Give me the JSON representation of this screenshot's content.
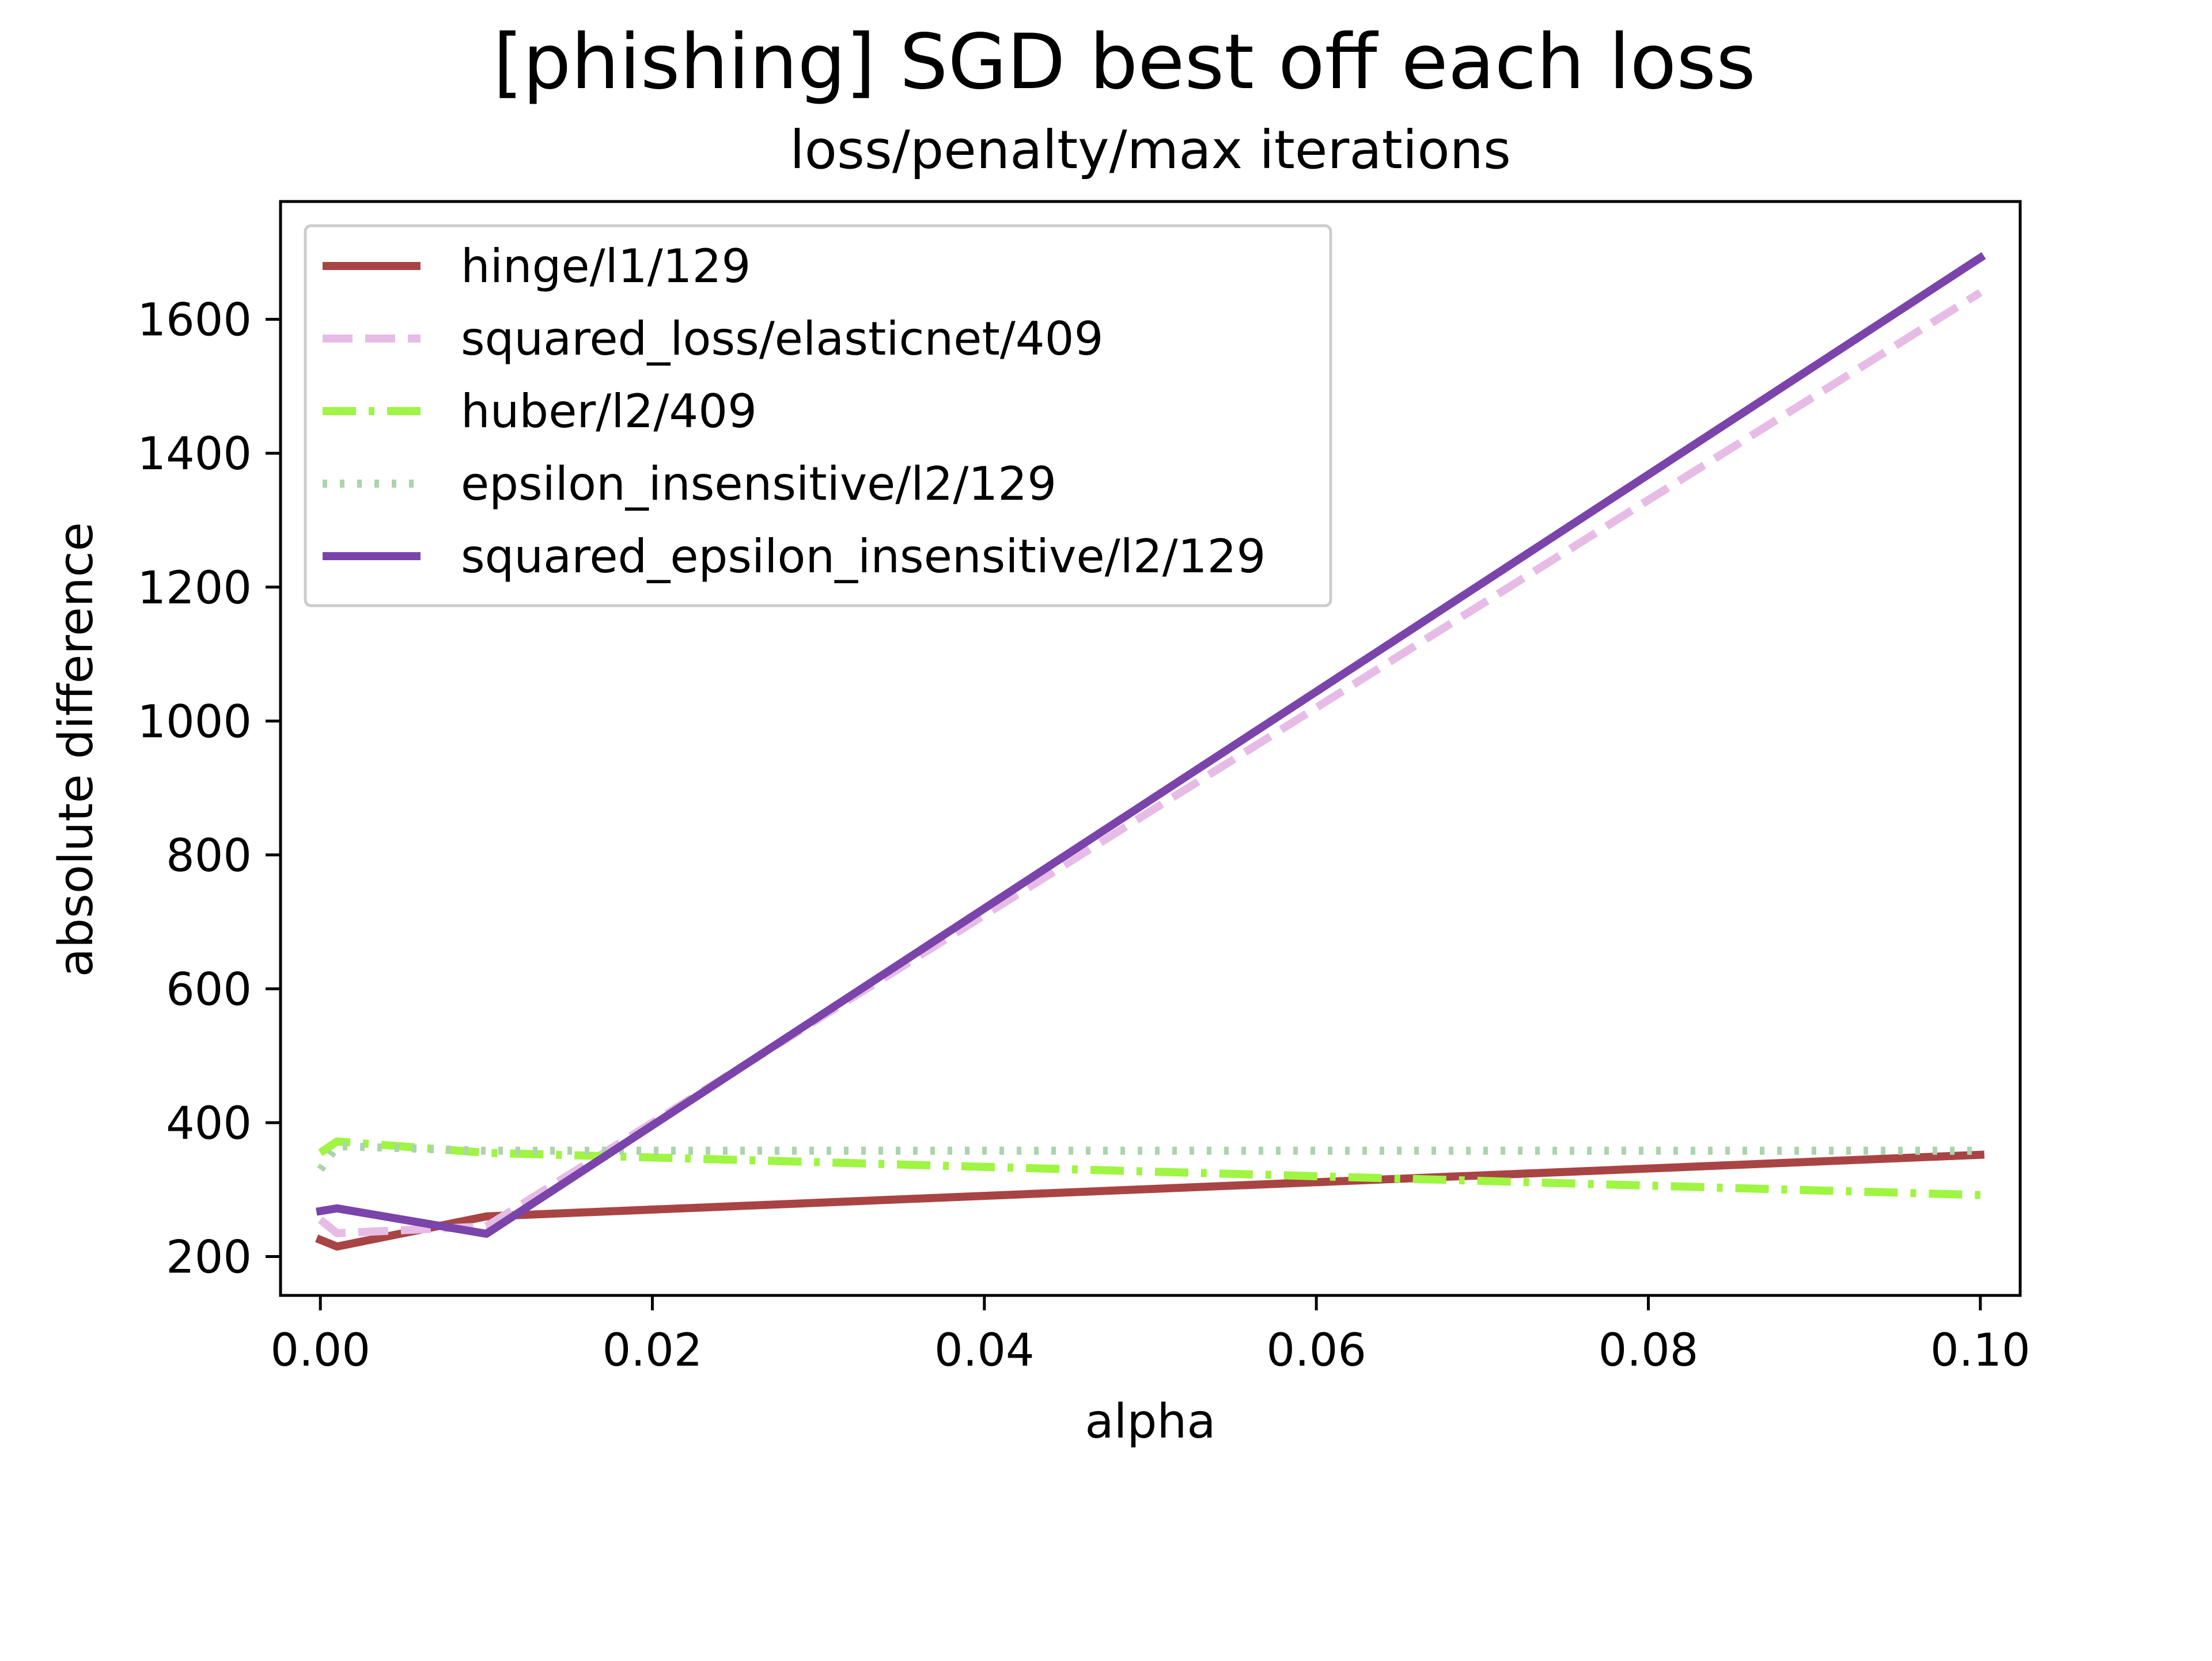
{
  "chart_data": {
    "type": "line",
    "title": "[phishing] SGD best off each loss",
    "subtitle": "loss/penalty/max iterations",
    "xlabel": "alpha",
    "ylabel": "absolute difference",
    "xlim": [
      -0.0024,
      0.1024
    ],
    "ylim": [
      142,
      1776
    ],
    "xticks": [
      "0.00",
      "0.02",
      "0.04",
      "0.06",
      "0.08",
      "0.10"
    ],
    "yticks": [
      "200",
      "400",
      "600",
      "800",
      "1000",
      "1200",
      "1400",
      "1600"
    ],
    "grid": false,
    "legend_position": "upper-left",
    "x": [
      0.0,
      0.001,
      0.01,
      0.1
    ],
    "series": [
      {
        "name": "hinge/l1/129",
        "color": "#a94444",
        "dash": "solid",
        "values": [
          225,
          215,
          260,
          352
        ]
      },
      {
        "name": "squared_loss/elasticnet/409",
        "color": "#e6bce6",
        "dash": "dashed",
        "values": [
          255,
          235,
          245,
          1640
        ]
      },
      {
        "name": "huber/l2/409",
        "color": "#9ef542",
        "dash": "dashdot",
        "values": [
          355,
          372,
          355,
          292
        ]
      },
      {
        "name": "epsilon_insensitive/l2/129",
        "color": "#abd4ab",
        "dash": "dotted",
        "values": [
          330,
          365,
          358,
          358
        ]
      },
      {
        "name": "squared_epsilon_insensitive/l2/129",
        "color": "#7b44aa",
        "dash": "solid",
        "values": [
          268,
          272,
          234,
          1692
        ]
      }
    ]
  }
}
